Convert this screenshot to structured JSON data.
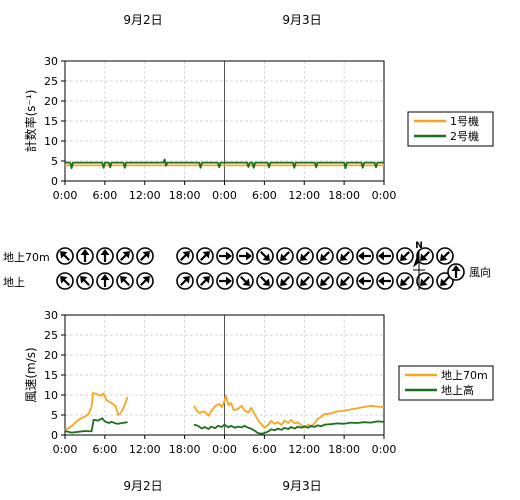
{
  "dates": [
    "9月2日",
    "9月3日"
  ],
  "colors": {
    "unit1": "#f5a623",
    "unit2": "#1f6e1f",
    "wind70m": "#f5a623",
    "windGround": "#1f6e1f",
    "grid": "#c8c8c8",
    "axis": "#000000"
  },
  "chart_data": [
    {
      "type": "line",
      "ylabel": "計数率(s⁻¹)",
      "ylim": [
        0,
        30
      ],
      "yticks": [
        0,
        5,
        10,
        15,
        20,
        25,
        30
      ],
      "x_ticklabels": [
        "0:00",
        "6:00",
        "12:00",
        "18:00",
        "0:00",
        "6:00",
        "12:00",
        "18:00",
        "0:00"
      ],
      "x_hours_range": [
        0,
        48
      ],
      "legend": "right",
      "series": [
        {
          "name": "1号機",
          "color": "#f5a623",
          "points": [
            [
              0,
              3.9
            ],
            [
              48,
              3.9
            ]
          ]
        },
        {
          "name": "2号機",
          "color": "#1f6e1f",
          "points": [
            [
              0,
              4.6
            ],
            [
              0.8,
              4.6
            ],
            [
              1.0,
              3.2
            ],
            [
              1.2,
              4.6
            ],
            [
              5.6,
              4.6
            ],
            [
              5.8,
              3.3
            ],
            [
              6.0,
              4.6
            ],
            [
              6.6,
              4.6
            ],
            [
              6.8,
              3.4
            ],
            [
              7.0,
              4.6
            ],
            [
              8.8,
              4.6
            ],
            [
              9.0,
              3.3
            ],
            [
              9.2,
              4.6
            ],
            [
              14.8,
              4.6
            ],
            [
              15.0,
              5.4
            ],
            [
              15.2,
              3.8
            ],
            [
              15.4,
              4.6
            ],
            [
              20.2,
              4.6
            ],
            [
              20.4,
              3.3
            ],
            [
              20.6,
              4.6
            ],
            [
              23.0,
              4.6
            ],
            [
              23.2,
              3.4
            ],
            [
              23.4,
              4.6
            ],
            [
              27.4,
              4.6
            ],
            [
              27.6,
              3.5
            ],
            [
              27.8,
              4.6
            ],
            [
              28.2,
              4.6
            ],
            [
              28.4,
              3.3
            ],
            [
              28.6,
              4.6
            ],
            [
              30.5,
              4.6
            ],
            [
              30.7,
              3.4
            ],
            [
              30.9,
              4.6
            ],
            [
              34.3,
              4.6
            ],
            [
              34.5,
              3.3
            ],
            [
              34.7,
              4.6
            ],
            [
              37.6,
              4.6
            ],
            [
              37.8,
              3.4
            ],
            [
              38.0,
              4.6
            ],
            [
              42.0,
              4.6
            ],
            [
              42.2,
              3.2
            ],
            [
              42.4,
              4.6
            ],
            [
              44.6,
              4.6
            ],
            [
              44.8,
              3.3
            ],
            [
              45.0,
              4.6
            ],
            [
              46.6,
              4.6
            ],
            [
              46.8,
              3.4
            ],
            [
              47.0,
              4.6
            ],
            [
              48,
              4.6
            ]
          ]
        }
      ]
    },
    {
      "type": "line",
      "ylabel": "風速(m/s)",
      "ylim": [
        0,
        30
      ],
      "yticks": [
        0,
        5,
        10,
        15,
        20,
        25,
        30
      ],
      "x_ticklabels": [
        "0:00",
        "6:00",
        "12:00",
        "18:00",
        "0:00",
        "6:00",
        "12:00",
        "18:00",
        "0:00"
      ],
      "x_hours_range": [
        0,
        48
      ],
      "legend": "right",
      "series": [
        {
          "name": "地上70m",
          "color": "#f5a623",
          "segments": [
            [
              [
                0,
                1.2
              ],
              [
                1,
                2.2
              ],
              [
                2,
                3.8
              ],
              [
                3,
                4.6
              ],
              [
                3.5,
                5.2
              ],
              [
                4,
                7.0
              ],
              [
                4.2,
                10.5
              ],
              [
                4.8,
                10.2
              ],
              [
                5.4,
                9.8
              ],
              [
                5.8,
                10.4
              ],
              [
                6.2,
                8.8
              ],
              [
                7,
                8.0
              ],
              [
                7.6,
                7.2
              ],
              [
                8,
                5.0
              ],
              [
                8.4,
                5.5
              ],
              [
                8.8,
                6.8
              ],
              [
                9.2,
                8.5
              ],
              [
                9.4,
                9.5
              ]
            ],
            [
              [
                19.4,
                7.3
              ],
              [
                19.8,
                6.2
              ],
              [
                20.2,
                5.5
              ],
              [
                21,
                5.9
              ],
              [
                21.6,
                4.8
              ],
              [
                22,
                6.0
              ],
              [
                22.6,
                7.2
              ],
              [
                23.2,
                7.8
              ],
              [
                23.6,
                7.0
              ],
              [
                24,
                8.5
              ],
              [
                24.2,
                9.8
              ],
              [
                24.6,
                7.5
              ],
              [
                25,
                8.0
              ],
              [
                25.4,
                6.2
              ],
              [
                26,
                6.5
              ],
              [
                26.6,
                7.3
              ],
              [
                27,
                6.2
              ],
              [
                27.6,
                5.6
              ],
              [
                28,
                6.8
              ],
              [
                28.6,
                5.0
              ],
              [
                29,
                3.8
              ],
              [
                29.4,
                3.0
              ],
              [
                30,
                1.8
              ],
              [
                30.6,
                2.6
              ],
              [
                31,
                3.5
              ],
              [
                31.6,
                2.8
              ],
              [
                32,
                3.2
              ],
              [
                32.6,
                2.5
              ],
              [
                33,
                3.6
              ],
              [
                33.6,
                3.0
              ],
              [
                34,
                3.8
              ],
              [
                34.6,
                2.9
              ],
              [
                35,
                3.2
              ],
              [
                35.6,
                2.4
              ],
              [
                36,
                1.8
              ],
              [
                36.6,
                2.6
              ],
              [
                37,
                2.0
              ],
              [
                37.6,
                3.0
              ],
              [
                38,
                4.0
              ],
              [
                38.6,
                4.6
              ],
              [
                39,
                5.2
              ],
              [
                40,
                5.4
              ],
              [
                41,
                5.9
              ],
              [
                42,
                6.1
              ],
              [
                43,
                6.4
              ],
              [
                44,
                6.7
              ],
              [
                45,
                7.0
              ],
              [
                46,
                7.3
              ],
              [
                47,
                7.1
              ],
              [
                48,
                7.0
              ]
            ]
          ]
        },
        {
          "name": "地上高",
          "color": "#1f6e1f",
          "segments": [
            [
              [
                0,
                1.0
              ],
              [
                1,
                0.6
              ],
              [
                2,
                0.8
              ],
              [
                3,
                1.0
              ],
              [
                4,
                0.9
              ],
              [
                4.3,
                3.8
              ],
              [
                5,
                3.6
              ],
              [
                5.6,
                4.2
              ],
              [
                6,
                3.4
              ],
              [
                6.6,
                3.0
              ],
              [
                7,
                3.3
              ],
              [
                7.6,
                2.9
              ],
              [
                8,
                2.8
              ],
              [
                8.6,
                3.0
              ],
              [
                9.4,
                3.2
              ]
            ],
            [
              [
                19.4,
                2.6
              ],
              [
                20,
                2.3
              ],
              [
                20.6,
                1.6
              ],
              [
                21,
                2.0
              ],
              [
                21.6,
                1.5
              ],
              [
                22,
                2.1
              ],
              [
                22.6,
                1.7
              ],
              [
                23,
                2.3
              ],
              [
                23.6,
                2.0
              ],
              [
                24,
                2.6
              ],
              [
                24.6,
                1.9
              ],
              [
                25,
                2.3
              ],
              [
                25.6,
                1.8
              ],
              [
                26,
                2.1
              ],
              [
                26.6,
                1.9
              ],
              [
                27,
                2.3
              ],
              [
                27.6,
                1.8
              ],
              [
                28,
                1.6
              ],
              [
                28.6,
                1.0
              ],
              [
                29,
                0.5
              ],
              [
                29.6,
                0.3
              ],
              [
                30,
                0.5
              ],
              [
                30.6,
                0.9
              ],
              [
                31,
                1.4
              ],
              [
                31.6,
                1.2
              ],
              [
                32,
                1.6
              ],
              [
                32.6,
                1.3
              ],
              [
                33,
                1.8
              ],
              [
                33.6,
                1.5
              ],
              [
                34,
                2.0
              ],
              [
                34.6,
                1.6
              ],
              [
                35,
                2.1
              ],
              [
                35.6,
                1.8
              ],
              [
                36,
                2.2
              ],
              [
                36.6,
                1.8
              ],
              [
                37,
                2.3
              ],
              [
                37.6,
                2.0
              ],
              [
                38,
                2.4
              ],
              [
                38.6,
                2.2
              ],
              [
                39,
                2.6
              ],
              [
                40,
                2.7
              ],
              [
                41,
                2.9
              ],
              [
                42,
                2.8
              ],
              [
                43,
                3.1
              ],
              [
                44,
                3.0
              ],
              [
                45,
                3.2
              ],
              [
                46,
                3.1
              ],
              [
                47,
                3.4
              ],
              [
                48,
                3.3
              ]
            ]
          ]
        }
      ]
    }
  ],
  "wind_rows": {
    "label_70m": "地上70m",
    "label_ground": "地上",
    "wind_70m_directions": [
      315,
      0,
      0,
      45,
      45,
      45,
      45,
      90,
      90,
      135,
      225,
      225,
      225,
      225,
      270,
      270,
      225,
      225,
      225
    ],
    "wind_ground_directions": [
      315,
      315,
      0,
      315,
      45,
      45,
      45,
      90,
      135,
      135,
      225,
      225,
      225,
      225,
      270,
      270,
      225,
      225,
      225
    ]
  },
  "north_label": "N",
  "wind_legend_label": "風向"
}
